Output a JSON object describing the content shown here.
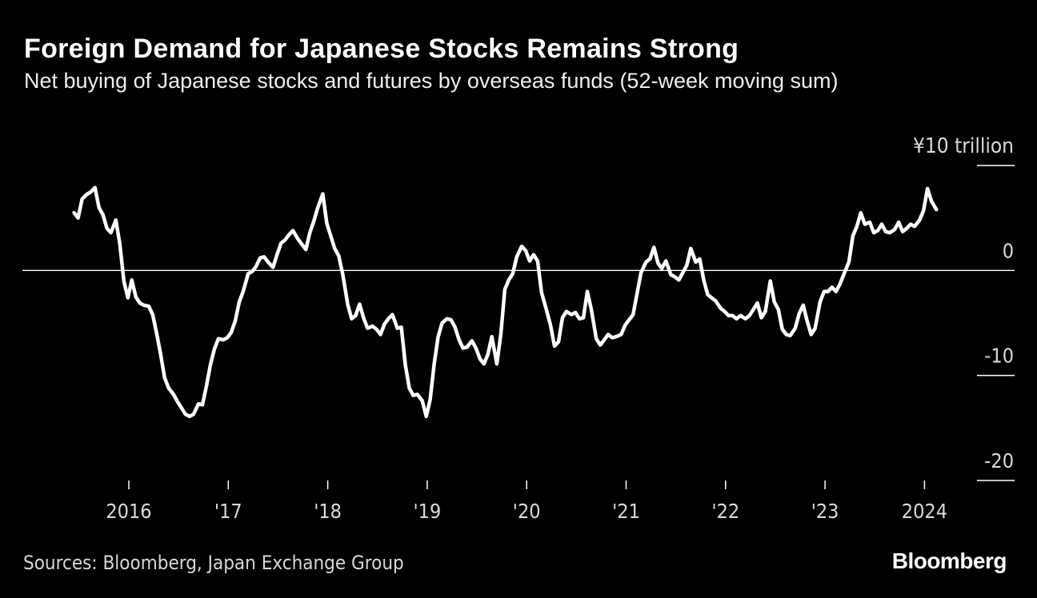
{
  "header": {
    "title": "Foreign Demand for Japanese Stocks Remains Strong",
    "subtitle": "Net buying of Japanese stocks and futures by overseas funds (52-week moving sum)"
  },
  "footer": {
    "source": "Sources: Bloomberg, Japan Exchange Group",
    "brand": "Bloomberg"
  },
  "colors": {
    "background": "#000000",
    "line": "#ffffff",
    "zero_line": "#ffffff",
    "text": "#ffffff",
    "muted_text": "#d9d9d9"
  },
  "chart_data": {
    "type": "line",
    "title": "Foreign Demand for Japanese Stocks Remains Strong",
    "subtitle": "Net buying of Japanese stocks and futures by overseas funds (52-week moving sum)",
    "xlabel": "",
    "ylabel": "¥ trillion",
    "y_unit_label": "¥10 trillion",
    "ylim": [
      -20,
      10
    ],
    "xlim": [
      2015.3,
      2024.75
    ],
    "y_ticks": [
      {
        "value": 10,
        "label": "¥10 trillion"
      },
      {
        "value": 0,
        "label": "0"
      },
      {
        "value": -10,
        "label": "-10"
      },
      {
        "value": -20,
        "label": "-20"
      }
    ],
    "x_ticks": [
      {
        "value": 2016,
        "label": "2016"
      },
      {
        "value": 2017,
        "label": "'17"
      },
      {
        "value": 2018,
        "label": "'18"
      },
      {
        "value": 2019,
        "label": "'19"
      },
      {
        "value": 2020,
        "label": "'20"
      },
      {
        "value": 2021,
        "label": "'21"
      },
      {
        "value": 2022,
        "label": "'22"
      },
      {
        "value": 2023,
        "label": "'23"
      },
      {
        "value": 2024,
        "label": "2024"
      }
    ],
    "zero_line": true,
    "grid": false,
    "series": [
      {
        "name": "Net buying by overseas funds (52-week moving sum)",
        "points": [
          [
            2015.45,
            5.5
          ],
          [
            2015.49,
            5.0
          ],
          [
            2015.53,
            6.8
          ],
          [
            2015.57,
            7.2
          ],
          [
            2015.62,
            7.5
          ],
          [
            2015.66,
            7.9
          ],
          [
            2015.7,
            6.0
          ],
          [
            2015.74,
            5.3
          ],
          [
            2015.78,
            4.0
          ],
          [
            2015.82,
            3.6
          ],
          [
            2015.87,
            4.8
          ],
          [
            2015.91,
            2.5
          ],
          [
            2015.95,
            -1.0
          ],
          [
            2015.99,
            -2.6
          ],
          [
            2016.03,
            -0.9
          ],
          [
            2016.07,
            -2.5
          ],
          [
            2016.11,
            -3.1
          ],
          [
            2016.15,
            -3.3
          ],
          [
            2016.2,
            -3.4
          ],
          [
            2016.24,
            -4.2
          ],
          [
            2016.28,
            -6.0
          ],
          [
            2016.32,
            -8.0
          ],
          [
            2016.36,
            -10.2
          ],
          [
            2016.4,
            -11.2
          ],
          [
            2016.45,
            -11.8
          ],
          [
            2016.49,
            -12.5
          ],
          [
            2016.53,
            -13.1
          ],
          [
            2016.57,
            -13.7
          ],
          [
            2016.61,
            -13.9
          ],
          [
            2016.65,
            -13.7
          ],
          [
            2016.7,
            -12.7
          ],
          [
            2016.74,
            -12.8
          ],
          [
            2016.78,
            -11.0
          ],
          [
            2016.82,
            -9.0
          ],
          [
            2016.86,
            -7.5
          ],
          [
            2016.9,
            -6.5
          ],
          [
            2016.95,
            -6.6
          ],
          [
            2016.99,
            -6.4
          ],
          [
            2017.03,
            -5.9
          ],
          [
            2017.07,
            -4.8
          ],
          [
            2017.11,
            -3.0
          ],
          [
            2017.15,
            -2.0
          ],
          [
            2017.2,
            -0.3
          ],
          [
            2017.24,
            -0.1
          ],
          [
            2017.28,
            0.4
          ],
          [
            2017.32,
            1.2
          ],
          [
            2017.36,
            1.3
          ],
          [
            2017.4,
            0.8
          ],
          [
            2017.45,
            0.3
          ],
          [
            2017.49,
            1.5
          ],
          [
            2017.53,
            2.6
          ],
          [
            2017.57,
            2.9
          ],
          [
            2017.61,
            3.4
          ],
          [
            2017.65,
            3.8
          ],
          [
            2017.7,
            3.0
          ],
          [
            2017.74,
            2.5
          ],
          [
            2017.78,
            2.0
          ],
          [
            2017.82,
            3.6
          ],
          [
            2017.86,
            4.7
          ],
          [
            2017.9,
            6.0
          ],
          [
            2017.95,
            7.3
          ],
          [
            2017.99,
            4.5
          ],
          [
            2018.03,
            3.3
          ],
          [
            2018.07,
            2.1
          ],
          [
            2018.11,
            1.4
          ],
          [
            2018.15,
            -0.3
          ],
          [
            2018.2,
            -3.2
          ],
          [
            2018.24,
            -4.6
          ],
          [
            2018.28,
            -4.3
          ],
          [
            2018.32,
            -3.2
          ],
          [
            2018.36,
            -4.5
          ],
          [
            2018.4,
            -5.5
          ],
          [
            2018.45,
            -5.3
          ],
          [
            2018.49,
            -5.6
          ],
          [
            2018.53,
            -6.1
          ],
          [
            2018.57,
            -5.1
          ],
          [
            2018.61,
            -4.6
          ],
          [
            2018.65,
            -4.2
          ],
          [
            2018.7,
            -5.5
          ],
          [
            2018.74,
            -5.4
          ],
          [
            2018.78,
            -9.0
          ],
          [
            2018.82,
            -11.2
          ],
          [
            2018.86,
            -11.9
          ],
          [
            2018.9,
            -11.8
          ],
          [
            2018.95,
            -12.4
          ],
          [
            2018.99,
            -13.9
          ],
          [
            2019.03,
            -12.3
          ],
          [
            2019.07,
            -8.9
          ],
          [
            2019.11,
            -6.3
          ],
          [
            2019.15,
            -5.0
          ],
          [
            2019.2,
            -4.6
          ],
          [
            2019.24,
            -4.7
          ],
          [
            2019.28,
            -5.4
          ],
          [
            2019.32,
            -6.6
          ],
          [
            2019.36,
            -7.4
          ],
          [
            2019.4,
            -7.3
          ],
          [
            2019.45,
            -6.7
          ],
          [
            2019.49,
            -7.4
          ],
          [
            2019.53,
            -8.4
          ],
          [
            2019.57,
            -8.9
          ],
          [
            2019.61,
            -8.0
          ],
          [
            2019.65,
            -6.3
          ],
          [
            2019.7,
            -8.9
          ],
          [
            2019.74,
            -6.1
          ],
          [
            2019.78,
            -1.8
          ],
          [
            2019.82,
            -0.9
          ],
          [
            2019.86,
            -0.3
          ],
          [
            2019.9,
            1.3
          ],
          [
            2019.95,
            2.3
          ],
          [
            2019.99,
            1.9
          ],
          [
            2020.03,
            0.9
          ],
          [
            2020.07,
            1.5
          ],
          [
            2020.11,
            0.9
          ],
          [
            2020.15,
            -2.1
          ],
          [
            2020.2,
            -3.8
          ],
          [
            2020.24,
            -5.2
          ],
          [
            2020.28,
            -7.2
          ],
          [
            2020.32,
            -6.8
          ],
          [
            2020.36,
            -4.5
          ],
          [
            2020.4,
            -3.9
          ],
          [
            2020.45,
            -4.2
          ],
          [
            2020.49,
            -4.0
          ],
          [
            2020.53,
            -4.6
          ],
          [
            2020.57,
            -4.5
          ],
          [
            2020.61,
            -2.0
          ],
          [
            2020.65,
            -3.7
          ],
          [
            2020.7,
            -6.5
          ],
          [
            2020.74,
            -7.1
          ],
          [
            2020.78,
            -6.6
          ],
          [
            2020.82,
            -6.1
          ],
          [
            2020.86,
            -6.4
          ],
          [
            2020.9,
            -6.3
          ],
          [
            2020.95,
            -6.1
          ],
          [
            2020.99,
            -5.2
          ],
          [
            2021.03,
            -4.7
          ],
          [
            2021.07,
            -4.2
          ],
          [
            2021.11,
            -2.2
          ],
          [
            2021.15,
            -0.2
          ],
          [
            2021.2,
            0.8
          ],
          [
            2021.24,
            1.1
          ],
          [
            2021.28,
            2.2
          ],
          [
            2021.32,
            0.7
          ],
          [
            2021.36,
            0.2
          ],
          [
            2021.4,
            0.9
          ],
          [
            2021.45,
            -0.4
          ],
          [
            2021.49,
            -0.6
          ],
          [
            2021.53,
            -0.9
          ],
          [
            2021.57,
            -0.2
          ],
          [
            2021.61,
            0.5
          ],
          [
            2021.65,
            2.1
          ],
          [
            2021.7,
            0.8
          ],
          [
            2021.74,
            1.1
          ],
          [
            2021.78,
            -0.9
          ],
          [
            2021.82,
            -2.3
          ],
          [
            2021.86,
            -2.6
          ],
          [
            2021.9,
            -2.9
          ],
          [
            2021.95,
            -3.6
          ],
          [
            2021.99,
            -3.9
          ],
          [
            2022.03,
            -4.3
          ],
          [
            2022.07,
            -4.3
          ],
          [
            2022.11,
            -4.6
          ],
          [
            2022.15,
            -4.3
          ],
          [
            2022.2,
            -4.6
          ],
          [
            2022.24,
            -4.3
          ],
          [
            2022.28,
            -3.7
          ],
          [
            2022.32,
            -3.1
          ],
          [
            2022.36,
            -4.5
          ],
          [
            2022.4,
            -3.9
          ],
          [
            2022.45,
            -1.0
          ],
          [
            2022.49,
            -3.0
          ],
          [
            2022.53,
            -3.7
          ],
          [
            2022.57,
            -5.6
          ],
          [
            2022.61,
            -6.1
          ],
          [
            2022.65,
            -6.2
          ],
          [
            2022.7,
            -5.5
          ],
          [
            2022.74,
            -4.1
          ],
          [
            2022.78,
            -3.3
          ],
          [
            2022.82,
            -4.8
          ],
          [
            2022.86,
            -6.1
          ],
          [
            2022.9,
            -5.5
          ],
          [
            2022.95,
            -3.0
          ],
          [
            2022.99,
            -2.0
          ],
          [
            2023.03,
            -2.0
          ],
          [
            2023.07,
            -1.6
          ],
          [
            2023.11,
            -2.0
          ],
          [
            2023.15,
            -1.3
          ],
          [
            2023.2,
            -0.1
          ],
          [
            2023.24,
            0.8
          ],
          [
            2023.28,
            3.3
          ],
          [
            2023.32,
            4.2
          ],
          [
            2023.36,
            5.5
          ],
          [
            2023.4,
            4.4
          ],
          [
            2023.45,
            4.6
          ],
          [
            2023.49,
            3.6
          ],
          [
            2023.53,
            3.8
          ],
          [
            2023.57,
            4.4
          ],
          [
            2023.61,
            3.7
          ],
          [
            2023.65,
            3.6
          ],
          [
            2023.7,
            3.9
          ],
          [
            2023.74,
            4.6
          ],
          [
            2023.78,
            3.7
          ],
          [
            2023.82,
            4.0
          ],
          [
            2023.86,
            4.4
          ],
          [
            2023.9,
            4.2
          ],
          [
            2023.95,
            4.8
          ],
          [
            2023.99,
            5.7
          ],
          [
            2024.03,
            7.8
          ],
          [
            2024.07,
            6.6
          ],
          [
            2024.12,
            5.8
          ]
        ]
      }
    ]
  }
}
